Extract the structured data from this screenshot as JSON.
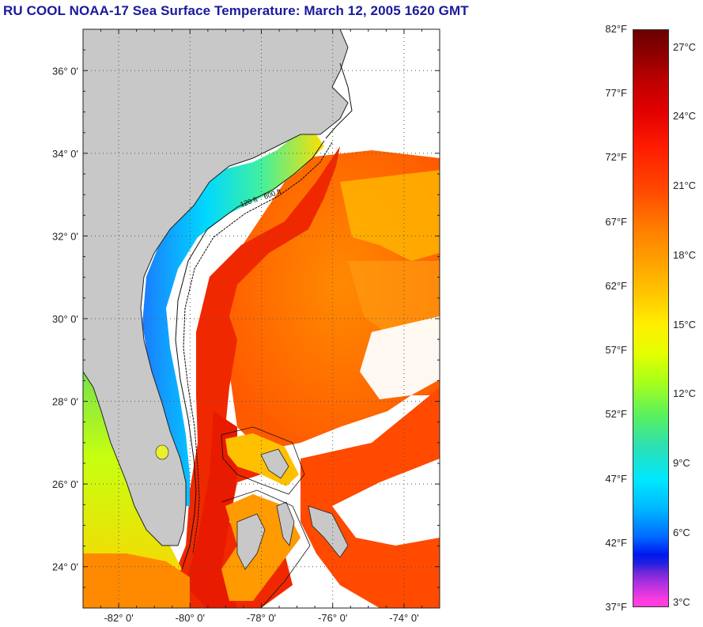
{
  "title": "RU COOL  NOAA-17  Sea Surface Temperature:  March 12, 2005 1620 GMT",
  "map": {
    "lat_labels": [
      "36° 0'",
      "34° 0'",
      "32° 0'",
      "30° 0'",
      "28° 0'",
      "26° 0'",
      "24° 0'"
    ],
    "lat_values": [
      36,
      34,
      32,
      30,
      28,
      26,
      24
    ],
    "lon_labels": [
      "-82° 0'",
      "-80° 0'",
      "-78° 0'",
      "-76° 0'",
      "-74° 0'"
    ],
    "lon_values": [
      -82,
      -80,
      -78,
      -76,
      -74
    ],
    "lat_range": [
      23,
      37
    ],
    "lon_range": [
      -83,
      -73
    ],
    "grid": "dotted",
    "contour_labels": [
      "120 ft",
      "600 ft"
    ],
    "colors": {
      "land": "#c8c8c8",
      "cloud": "#ffffff"
    }
  },
  "colorbar": {
    "fahrenheit": [
      "82°F",
      "77°F",
      "72°F",
      "67°F",
      "62°F",
      "57°F",
      "52°F",
      "47°F",
      "42°F",
      "37°F"
    ],
    "celsius": [
      "27°C",
      "24°C",
      "21°C",
      "18°C",
      "15°C",
      "12°C",
      "9°C",
      "6°C",
      "3°C"
    ]
  }
}
